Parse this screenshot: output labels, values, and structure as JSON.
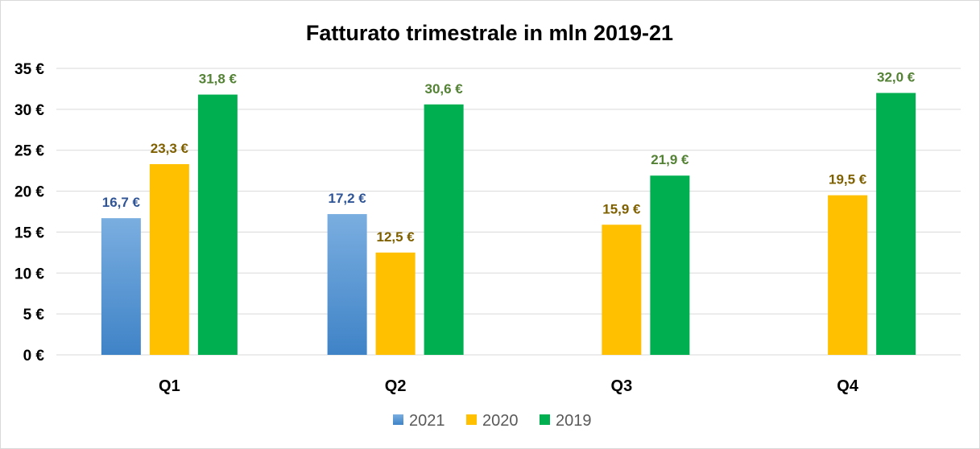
{
  "chart_data": {
    "type": "bar",
    "title": "Fatturato trimestrale in mln 2019-21",
    "categories": [
      "Q1",
      "Q2",
      "Q3",
      "Q4"
    ],
    "series": [
      {
        "name": "2021",
        "values": [
          16.7,
          17.2,
          null,
          null
        ],
        "labels": [
          "16,7 €",
          "17,2 €",
          "",
          ""
        ],
        "color": "#5b9bd5",
        "color_light": "#7aaee0",
        "color_dark": "#3f83c7",
        "label_color": "#2f5597"
      },
      {
        "name": "2020",
        "values": [
          23.3,
          12.5,
          15.9,
          19.5
        ],
        "labels": [
          "23,3 €",
          "12,5 €",
          "15,9 €",
          "19,5 €"
        ],
        "color": "#ffc000",
        "label_color": "#7f6000"
      },
      {
        "name": "2019",
        "values": [
          31.8,
          30.6,
          21.9,
          32.0
        ],
        "labels": [
          "31,8 €",
          "30,6 €",
          "21,9 €",
          "32,0 €"
        ],
        "color": "#00b050",
        "label_color": "#548235"
      }
    ],
    "y_ticks": [
      0,
      5,
      10,
      15,
      20,
      25,
      30,
      35
    ],
    "y_tick_labels": [
      "0 €",
      "5 €",
      "10 €",
      "15 €",
      "20 €",
      "25 €",
      "30 €",
      "35 €"
    ],
    "ylim": [
      0,
      35
    ],
    "grid": true,
    "gridline_color": "#d9d9d9",
    "legend_position": "bottom"
  }
}
